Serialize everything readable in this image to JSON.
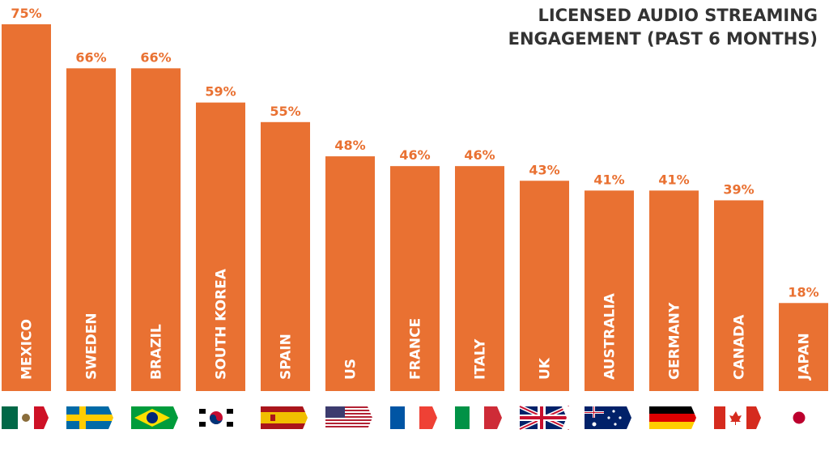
{
  "chart_data": {
    "type": "bar",
    "title_lines": [
      "LICENSED AUDIO STREAMING",
      "ENGAGEMENT (PAST 6 MONTHS)"
    ],
    "categories": [
      "MEXICO",
      "SWEDEN",
      "BRAZIL",
      "SOUTH KOREA",
      "SPAIN",
      "US",
      "FRANCE",
      "ITALY",
      "UK",
      "AUSTRALIA",
      "GERMANY",
      "CANADA",
      "JAPAN"
    ],
    "values": [
      75,
      66,
      66,
      59,
      55,
      48,
      46,
      46,
      43,
      41,
      41,
      39,
      18
    ],
    "value_labels": [
      "75%",
      "66%",
      "66%",
      "59%",
      "55%",
      "48%",
      "46%",
      "46%",
      "43%",
      "41%",
      "41%",
      "39%",
      "18%"
    ],
    "ylim": [
      0,
      75
    ],
    "grid": false,
    "legend": "none",
    "flag_icons": [
      "mexico-flag-icon",
      "sweden-flag-icon",
      "brazil-flag-icon",
      "south-korea-flag-icon",
      "spain-flag-icon",
      "us-flag-icon",
      "france-flag-icon",
      "italy-flag-icon",
      "uk-flag-icon",
      "australia-flag-icon",
      "germany-flag-icon",
      "canada-flag-icon",
      "japan-flag-icon"
    ],
    "colors": {
      "bar": "#E97132",
      "value_label": "#E97132",
      "title": "#333333",
      "category_label": "#FFFFFF"
    }
  }
}
